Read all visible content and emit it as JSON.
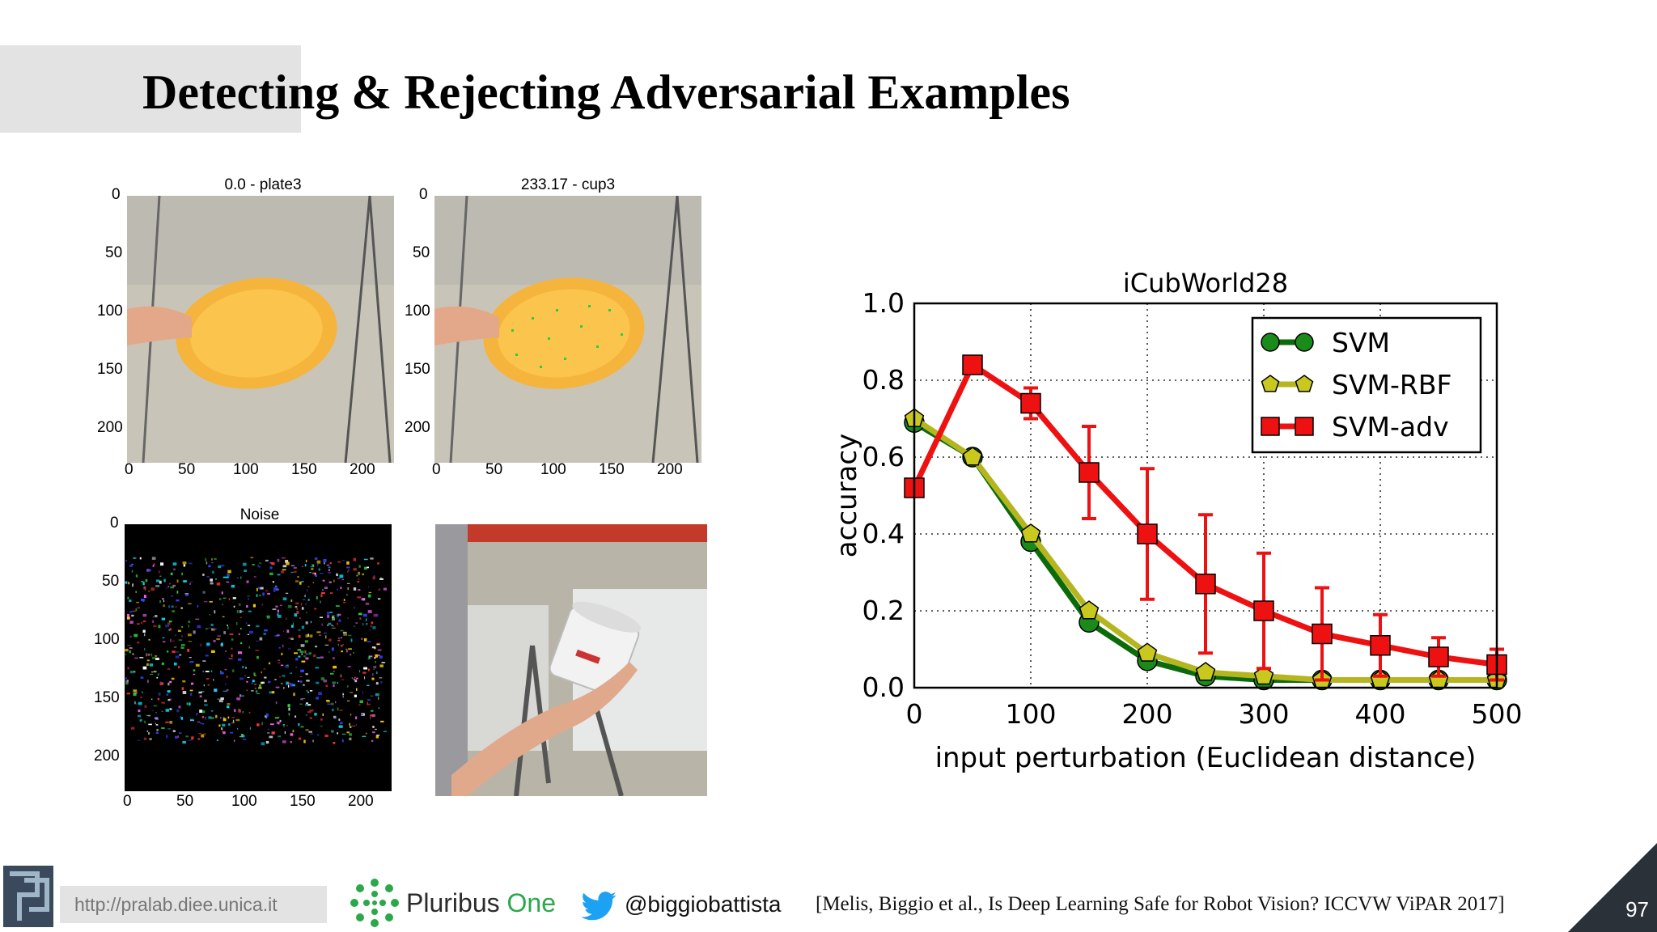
{
  "slide": {
    "title": "Detecting & Rejecting Adversarial Examples",
    "page_number": "97"
  },
  "images": {
    "plate_clean": {
      "title": "0.0 - plate3",
      "yticks": [
        "0",
        "50",
        "100",
        "150",
        "200"
      ],
      "xticks": [
        "0",
        "50",
        "100",
        "150",
        "200"
      ]
    },
    "plate_adv": {
      "title": "233.17 - cup3",
      "yticks": [
        "0",
        "50",
        "100",
        "150",
        "200"
      ],
      "xticks": [
        "0",
        "50",
        "100",
        "150",
        "200"
      ]
    },
    "noise": {
      "title": "Noise",
      "yticks": [
        "0",
        "50",
        "100",
        "150",
        "200"
      ],
      "xticks": [
        "0",
        "50",
        "100",
        "150",
        "200"
      ]
    }
  },
  "chart_data": {
    "type": "line",
    "title": "iCubWorld28",
    "xlabel": "input perturbation (Euclidean distance)",
    "ylabel": "accuracy",
    "xlim": [
      0,
      500
    ],
    "ylim": [
      0.0,
      1.0
    ],
    "xticks": [
      "0",
      "100",
      "200",
      "300",
      "400",
      "500"
    ],
    "yticks": [
      "0.0",
      "0.2",
      "0.4",
      "0.6",
      "0.8",
      "1.0"
    ],
    "grid": true,
    "legend": "top-right",
    "x": [
      0,
      50,
      100,
      150,
      200,
      250,
      300,
      350,
      400,
      450,
      500
    ],
    "series": [
      {
        "name": "SVM",
        "color": "#1a8a1a",
        "line": "#0b6b0b",
        "marker": "circle",
        "values": [
          0.69,
          0.6,
          0.38,
          0.17,
          0.07,
          0.03,
          0.02,
          0.02,
          0.02,
          0.02,
          0.02
        ]
      },
      {
        "name": "SVM-RBF",
        "color": "#c8c81e",
        "line": "#b5b520",
        "marker": "pentagon",
        "values": [
          0.7,
          0.6,
          0.4,
          0.2,
          0.09,
          0.04,
          0.03,
          0.02,
          0.02,
          0.02,
          0.02
        ]
      },
      {
        "name": "SVM-adv",
        "color": "#ee1111",
        "line": "#ee1111",
        "marker": "square",
        "values": [
          0.52,
          0.84,
          0.74,
          0.56,
          0.4,
          0.27,
          0.2,
          0.14,
          0.11,
          0.08,
          0.06
        ],
        "err": [
          0.0,
          0.0,
          0.04,
          0.12,
          0.17,
          0.18,
          0.15,
          0.12,
          0.08,
          0.05,
          0.04
        ]
      }
    ]
  },
  "footer": {
    "url": "http://pralab.diee.unica.it",
    "company": "Pluribus One",
    "company_a": "Pluribus ",
    "company_b": "One",
    "twitter": "@biggiobattista",
    "citation": "[Melis, Biggio et al., Is Deep Learning Safe for Robot Vision? ICCVW ViPAR 2017]"
  },
  "colors": {
    "accent_dark": "#2b3139",
    "twitter_blue": "#1da1f2",
    "pluribus_green": "#2aa84a"
  }
}
